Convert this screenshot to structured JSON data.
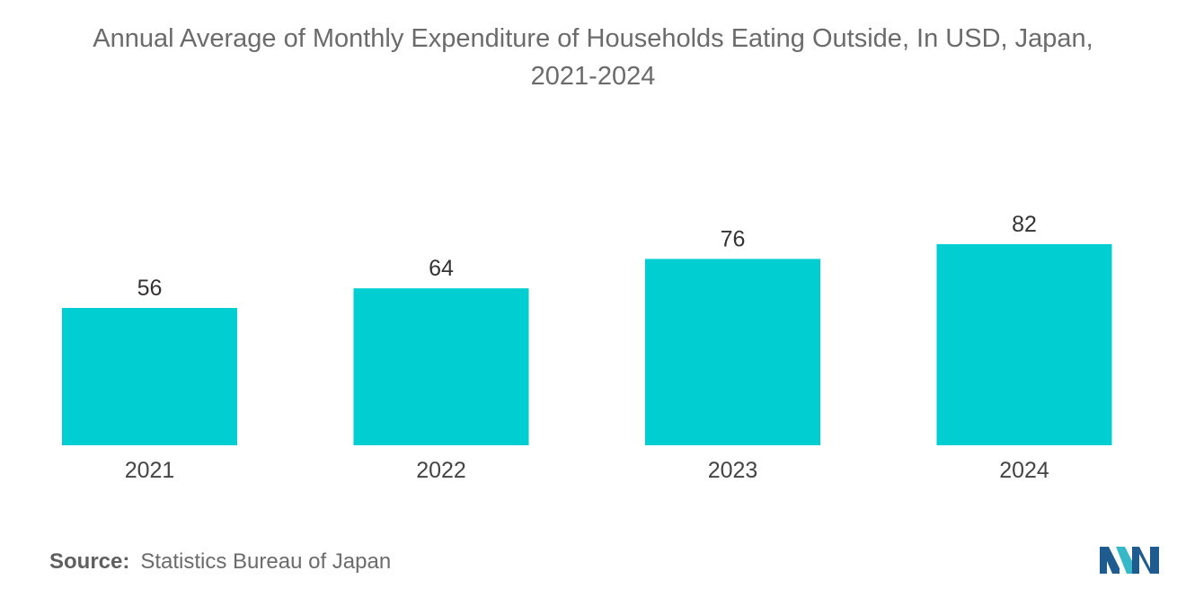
{
  "title_line1": "Annual Average of Monthly Expenditure of Households Eating Outside, In USD, Japan,",
  "title_line2": "2021-2024",
  "source_label": "Source:",
  "source_text": "Statistics Bureau of Japan",
  "colors": {
    "bar": "#00CED1",
    "text": "#555555",
    "title": "#6b6b6b",
    "logo_dark": "#1f5b8e",
    "logo_light": "#37b8c8"
  },
  "logo_icon": "mordor-logo-icon",
  "chart_data": {
    "type": "bar",
    "title": "Annual Average of Monthly Expenditure of Households Eating Outside, In USD, Japan, 2021-2024",
    "categories": [
      "2021",
      "2022",
      "2023",
      "2024"
    ],
    "values": [
      56,
      64,
      76,
      82
    ],
    "ylim": [
      0,
      82
    ],
    "data_labels": true,
    "grid": false,
    "legend": "none",
    "xlabel": "",
    "ylabel": ""
  }
}
